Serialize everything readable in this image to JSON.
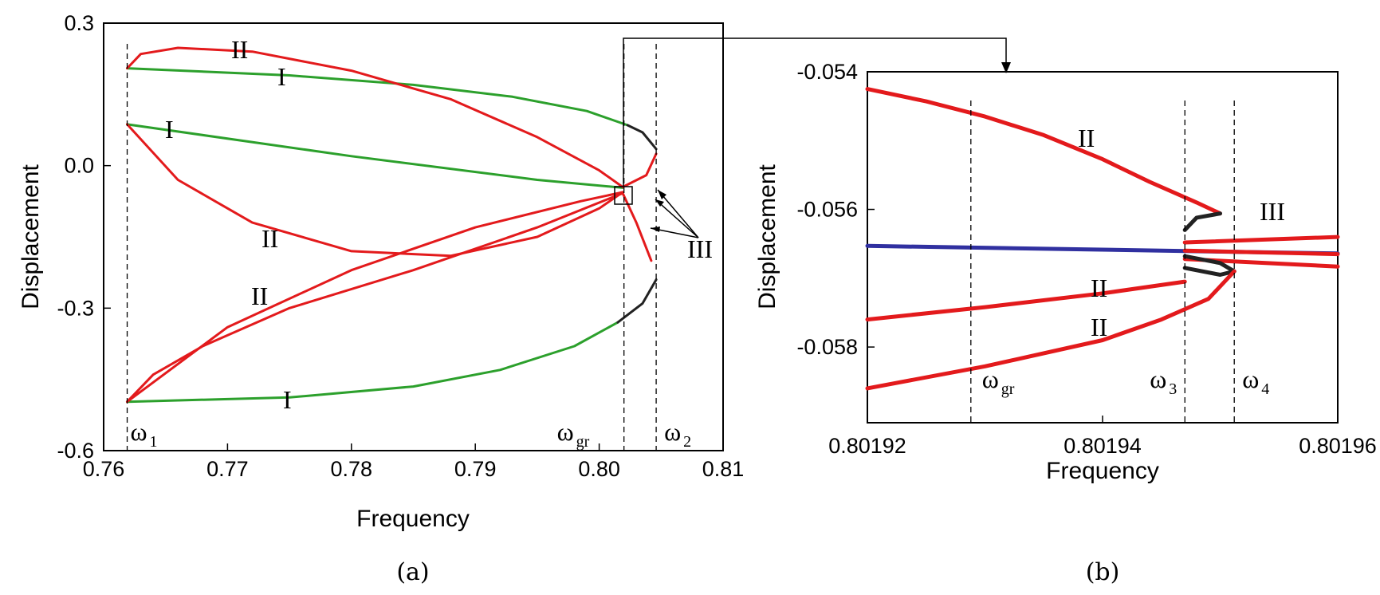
{
  "chart_data": [
    {
      "panel": "(a)",
      "type": "line",
      "xlabel": "Frequency",
      "ylabel": "Displacement",
      "xlim": [
        0.76,
        0.81
      ],
      "ylim": [
        -0.6,
        0.3
      ],
      "xticks": [
        "0.76",
        "0.77",
        "0.78",
        "0.79",
        "0.80",
        "0.81"
      ],
      "yticks": [
        "-0.6",
        "-0.3",
        "0.0",
        "0.3"
      ],
      "vlines": [
        {
          "x": 0.7619,
          "label": "ω",
          "sub": "1"
        },
        {
          "x": 0.802,
          "label": "ω",
          "sub": "gr"
        },
        {
          "x": 0.8046,
          "label": "ω",
          "sub": "2"
        }
      ],
      "series": [
        {
          "color": "#2ca02c",
          "points": [
            [
              0.7619,
              0.205
            ],
            [
              0.775,
              0.19
            ],
            [
              0.785,
              0.17
            ],
            [
              0.793,
              0.145
            ],
            [
              0.799,
              0.115
            ],
            [
              0.8023,
              0.085
            ]
          ]
        },
        {
          "color": "#222222",
          "points": [
            [
              0.8023,
              0.085
            ],
            [
              0.8035,
              0.07
            ],
            [
              0.8046,
              0.035
            ]
          ]
        },
        {
          "color": "#2ca02c",
          "points": [
            [
              0.7619,
              0.087
            ],
            [
              0.78,
              0.02
            ],
            [
              0.795,
              -0.03
            ],
            [
              0.8019,
              -0.0466
            ]
          ]
        },
        {
          "color": "#2ca02c",
          "points": [
            [
              0.7619,
              -0.497
            ],
            [
              0.775,
              -0.488
            ],
            [
              0.785,
              -0.465
            ],
            [
              0.792,
              -0.43
            ],
            [
              0.798,
              -0.38
            ],
            [
              0.8015,
              -0.33
            ]
          ]
        },
        {
          "color": "#222222",
          "points": [
            [
              0.8015,
              -0.33
            ],
            [
              0.8035,
              -0.29
            ],
            [
              0.8046,
              -0.24
            ]
          ]
        },
        {
          "color": "#e31a1c",
          "points": [
            [
              0.7619,
              0.205
            ],
            [
              0.763,
              0.235
            ],
            [
              0.766,
              0.248
            ],
            [
              0.772,
              0.24
            ],
            [
              0.78,
              0.2
            ],
            [
              0.788,
              0.14
            ],
            [
              0.795,
              0.06
            ],
            [
              0.8,
              -0.01
            ],
            [
              0.8019,
              -0.045
            ]
          ]
        },
        {
          "color": "#e31a1c",
          "points": [
            [
              0.7619,
              0.087
            ],
            [
              0.766,
              -0.03
            ],
            [
              0.772,
              -0.12
            ],
            [
              0.78,
              -0.18
            ],
            [
              0.788,
              -0.19
            ],
            [
              0.795,
              -0.15
            ],
            [
              0.8,
              -0.09
            ],
            [
              0.8019,
              -0.056
            ]
          ]
        },
        {
          "color": "#e31a1c",
          "points": [
            [
              0.7619,
              -0.497
            ],
            [
              0.764,
              -0.44
            ],
            [
              0.768,
              -0.38
            ],
            [
              0.775,
              -0.3
            ],
            [
              0.785,
              -0.22
            ],
            [
              0.795,
              -0.13
            ],
            [
              0.8019,
              -0.058
            ]
          ]
        },
        {
          "color": "#e31a1c",
          "points": [
            [
              0.7619,
              -0.497
            ],
            [
              0.77,
              -0.34
            ],
            [
              0.78,
              -0.22
            ],
            [
              0.79,
              -0.13
            ],
            [
              0.7985,
              -0.075
            ],
            [
              0.8019,
              -0.056
            ]
          ]
        },
        {
          "color": "#e31a1c",
          "points": [
            [
              0.8019,
              -0.045
            ],
            [
              0.8038,
              -0.02
            ],
            [
              0.8046,
              0.025
            ]
          ]
        },
        {
          "color": "#e31a1c",
          "points": [
            [
              0.8019,
              -0.058
            ],
            [
              0.803,
              -0.12
            ],
            [
              0.8042,
              -0.2
            ]
          ]
        }
      ],
      "annotations": [
        "II",
        "I",
        "I",
        "II",
        "II",
        "I",
        "III"
      ]
    },
    {
      "panel": "(b)",
      "type": "line",
      "xlabel": "Frequency",
      "ylabel": "Displacement",
      "xlim": [
        0.80192,
        0.80196
      ],
      "ylim": [
        -0.0591,
        -0.054
      ],
      "xticks": [
        "0.80192",
        "0.80194",
        "0.80196"
      ],
      "yticks": [
        "-0.054",
        "-0.056",
        "-0.058"
      ],
      "vlines": [
        {
          "x": 0.8019288,
          "label": "ω",
          "sub": "gr"
        },
        {
          "x": 0.801947,
          "label": "ω",
          "sub": "3"
        },
        {
          "x": 0.8019512,
          "label": "ω",
          "sub": "4"
        }
      ],
      "series": [
        {
          "color": "#e31a1c",
          "points": [
            [
              0.80192,
              -0.05425
            ],
            [
              0.801925,
              -0.05443
            ],
            [
              0.80193,
              -0.05465
            ],
            [
              0.801935,
              -0.05492
            ],
            [
              0.80194,
              -0.05527
            ],
            [
              0.801944,
              -0.0556
            ],
            [
              0.801948,
              -0.0559
            ],
            [
              0.80195,
              -0.05606
            ]
          ]
        },
        {
          "color": "#222222",
          "points": [
            [
              0.80195,
              -0.05606
            ],
            [
              0.801948,
              -0.05612
            ],
            [
              0.801947,
              -0.0563
            ]
          ]
        },
        {
          "color": "#e31a1c",
          "points": [
            [
              0.801947,
              -0.05648
            ],
            [
              0.80196,
              -0.0564
            ]
          ]
        },
        {
          "color": "#3030a0",
          "points": [
            [
              0.80192,
              -0.05653
            ],
            [
              0.80196,
              -0.05664
            ]
          ]
        },
        {
          "color": "#e31a1c",
          "points": [
            [
              0.801947,
              -0.0566
            ],
            [
              0.80196,
              -0.05665
            ]
          ]
        },
        {
          "color": "#e31a1c",
          "points": [
            [
              0.801947,
              -0.05672
            ],
            [
              0.80196,
              -0.05683
            ]
          ]
        },
        {
          "color": "#222222",
          "points": [
            [
              0.801947,
              -0.05668
            ],
            [
              0.80195,
              -0.05678
            ],
            [
              0.8019512,
              -0.0569
            ]
          ]
        },
        {
          "color": "#222222",
          "points": [
            [
              0.801947,
              -0.05685
            ],
            [
              0.80195,
              -0.05695
            ],
            [
              0.8019512,
              -0.0569
            ]
          ]
        },
        {
          "color": "#e31a1c",
          "points": [
            [
              0.80192,
              -0.0576
            ],
            [
              0.80193,
              -0.05742
            ],
            [
              0.80194,
              -0.05722
            ],
            [
              0.801947,
              -0.05705
            ]
          ]
        },
        {
          "color": "#e31a1c",
          "points": [
            [
              0.80192,
              -0.0586
            ],
            [
              0.80193,
              -0.05828
            ],
            [
              0.80194,
              -0.0579
            ],
            [
              0.801945,
              -0.0576
            ],
            [
              0.801949,
              -0.0573
            ],
            [
              0.8019512,
              -0.0569
            ]
          ]
        }
      ],
      "annotations": [
        "II",
        "III",
        "II",
        "II"
      ]
    }
  ],
  "captions": {
    "a": "(a)",
    "b": "(b)"
  },
  "labels": {
    "a_II_top": "II",
    "a_I_top": "I",
    "a_I_mid": "I",
    "a_II_mid": "II",
    "a_II_low": "II",
    "a_I_low": "I",
    "a_III": "III",
    "b_II_top": "II",
    "b_III": "III",
    "b_II_mid": "II",
    "b_II_low": "II"
  }
}
